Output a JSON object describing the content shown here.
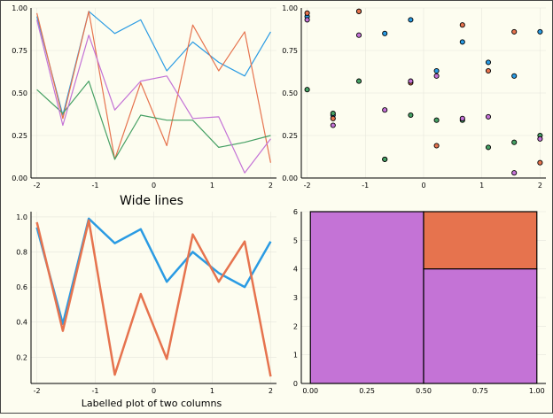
{
  "colors": {
    "background": "#fdfdf0",
    "axis": "#000000",
    "grid": "#e6e6dc",
    "blue": "#2a9be3",
    "orange": "#e6734e",
    "green": "#46a064",
    "purple": "#c473d6",
    "cell_border": "#000000"
  },
  "chart_data": [
    {
      "type": "line",
      "title": "",
      "xlabel": "",
      "ylabel": "",
      "x": [
        -2,
        -1.5556,
        -1.1111,
        -0.6667,
        -0.2222,
        0.2222,
        0.6667,
        1.1111,
        1.5556,
        2
      ],
      "xticks": [
        "-2",
        "-1",
        "0",
        "1",
        "2"
      ],
      "yticks": [
        "0.00",
        "0.25",
        "0.50",
        "0.75",
        "1.00"
      ],
      "xlim": [
        -2.1,
        2.1
      ],
      "ylim": [
        0,
        1
      ],
      "grid": true,
      "series": [
        {
          "color": "#2a9be3",
          "values": [
            0.95,
            0.37,
            0.98,
            0.85,
            0.93,
            0.63,
            0.8,
            0.68,
            0.6,
            0.86
          ]
        },
        {
          "color": "#e6734e",
          "values": [
            0.97,
            0.35,
            0.98,
            0.11,
            0.56,
            0.19,
            0.9,
            0.63,
            0.86,
            0.09
          ]
        },
        {
          "color": "#46a064",
          "values": [
            0.52,
            0.38,
            0.57,
            0.11,
            0.37,
            0.34,
            0.34,
            0.18,
            0.21,
            0.25
          ]
        },
        {
          "color": "#c473d6",
          "values": [
            0.93,
            0.31,
            0.84,
            0.4,
            0.57,
            0.6,
            0.35,
            0.36,
            0.03,
            0.23
          ]
        }
      ]
    },
    {
      "type": "scatter",
      "title": "",
      "xlabel": "",
      "ylabel": "",
      "x": [
        -2,
        -1.5556,
        -1.1111,
        -0.6667,
        -0.2222,
        0.2222,
        0.6667,
        1.1111,
        1.5556,
        2
      ],
      "xticks": [
        "-2",
        "-1",
        "0",
        "1",
        "2"
      ],
      "yticks": [
        "0.00",
        "0.25",
        "0.50",
        "0.75",
        "1.00"
      ],
      "xlim": [
        -2.1,
        2.1
      ],
      "ylim": [
        0,
        1
      ],
      "grid": true,
      "series": [
        {
          "color": "#2a9be3",
          "values": [
            0.95,
            0.37,
            0.98,
            0.85,
            0.93,
            0.63,
            0.8,
            0.68,
            0.6,
            0.86
          ]
        },
        {
          "color": "#e6734e",
          "values": [
            0.97,
            0.35,
            0.98,
            0.11,
            0.56,
            0.19,
            0.9,
            0.63,
            0.86,
            0.09
          ]
        },
        {
          "color": "#46a064",
          "values": [
            0.52,
            0.38,
            0.57,
            0.11,
            0.37,
            0.34,
            0.34,
            0.18,
            0.21,
            0.25
          ]
        },
        {
          "color": "#c473d6",
          "values": [
            0.93,
            0.31,
            0.84,
            0.4,
            0.57,
            0.6,
            0.35,
            0.36,
            0.03,
            0.23
          ]
        }
      ]
    },
    {
      "type": "line",
      "title": "Wide lines",
      "xlabel": "Labelled plot of two columns",
      "ylabel": "",
      "x": [
        -2,
        -1.5556,
        -1.1111,
        -0.6667,
        -0.2222,
        0.2222,
        0.6667,
        1.1111,
        1.5556,
        2
      ],
      "xticks": [
        "-2",
        "-1",
        "0",
        "1",
        "2"
      ],
      "yticks": [
        "0.2",
        "0.4",
        "0.6",
        "0.8",
        "1.0"
      ],
      "xlim": [
        -2.1,
        2.1
      ],
      "ylim": [
        0.05,
        1.03
      ],
      "grid": true,
      "series": [
        {
          "color": "#2a9be3",
          "values": [
            0.94,
            0.39,
            0.99,
            0.85,
            0.93,
            0.63,
            0.8,
            0.68,
            0.6,
            0.86
          ]
        },
        {
          "color": "#e6734e",
          "values": [
            0.97,
            0.35,
            0.98,
            0.1,
            0.56,
            0.19,
            0.9,
            0.63,
            0.86,
            0.09
          ]
        }
      ]
    },
    {
      "type": "heatmap",
      "title": "",
      "xlabel": "",
      "ylabel": "",
      "xticks": [
        "0.00",
        "0.25",
        "0.50",
        "0.75",
        "1.00"
      ],
      "yticks": [
        "0",
        "1",
        "2",
        "3",
        "4",
        "5",
        "6"
      ],
      "xlim": [
        -0.04,
        1.04
      ],
      "ylim": [
        0,
        6
      ],
      "grid": true,
      "cells": [
        {
          "x0": 0.0,
          "x1": 0.5,
          "y0": 0,
          "y1": 6,
          "color": "#c473d6"
        },
        {
          "x0": 0.5,
          "x1": 1.0,
          "y0": 4,
          "y1": 6,
          "color": "#e6734e"
        },
        {
          "x0": 0.5,
          "x1": 1.0,
          "y0": 0,
          "y1": 4,
          "color": "#c473d6"
        }
      ]
    }
  ]
}
